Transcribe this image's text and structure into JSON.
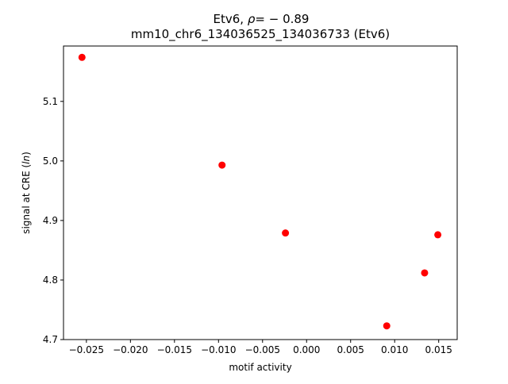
{
  "chart_data": {
    "type": "scatter",
    "title_prefix": "Etv6, ",
    "title_rho_symbol": "ρ",
    "title_rho_value": "= − 0.89",
    "subtitle": "mm10_chr6_134036525_134036733 (Etv6)",
    "xlabel": "motif activity",
    "ylabel_prefix": "signal at CRE (",
    "ylabel_italic": "ln",
    "ylabel_suffix": ")",
    "xlim": [
      -0.0276,
      0.0171
    ],
    "ylim": [
      4.7,
      5.193
    ],
    "xticks": [
      -0.025,
      -0.02,
      -0.015,
      -0.01,
      -0.005,
      0.0,
      0.005,
      0.01,
      0.015
    ],
    "xtick_labels": [
      "−0.025",
      "−0.020",
      "−0.015",
      "−0.010",
      "−0.005",
      "0.000",
      "0.005",
      "0.010",
      "0.015"
    ],
    "yticks": [
      4.7,
      4.8,
      4.9,
      5.0,
      5.1
    ],
    "ytick_labels": [
      "4.7",
      "4.8",
      "4.9",
      "5.0",
      "5.1"
    ],
    "grid": false,
    "marker_color": "#ff0000",
    "points": [
      {
        "x": -0.0255,
        "y": 5.174
      },
      {
        "x": -0.0096,
        "y": 4.993
      },
      {
        "x": -0.0024,
        "y": 4.879
      },
      {
        "x": 0.0091,
        "y": 4.723
      },
      {
        "x": 0.0134,
        "y": 4.812
      },
      {
        "x": 0.0149,
        "y": 4.876
      }
    ]
  }
}
